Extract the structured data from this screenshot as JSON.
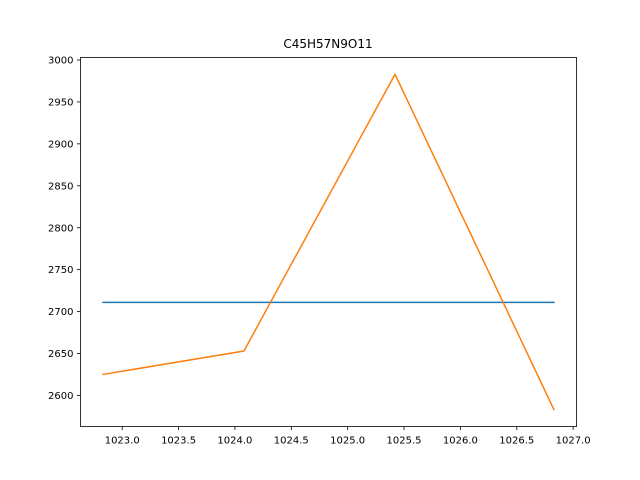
{
  "chart_data": {
    "type": "line",
    "title": "C45H57N9O11",
    "xlabel": "",
    "ylabel": "",
    "xlim": [
      1022.63,
      1027.03
    ],
    "ylim": [
      2562.9,
      3003.0
    ],
    "x_ticks": [
      1023.0,
      1023.5,
      1024.0,
      1024.5,
      1025.0,
      1025.5,
      1026.0,
      1026.5,
      1027.0
    ],
    "x_tick_labels": [
      "1023.0",
      "1023.5",
      "1024.0",
      "1024.5",
      "1025.0",
      "1025.5",
      "1026.0",
      "1026.5",
      "1027.0"
    ],
    "y_ticks": [
      2600,
      2650,
      2700,
      2750,
      2800,
      2850,
      2900,
      2950,
      3000
    ],
    "y_tick_labels": [
      "2600",
      "2650",
      "2700",
      "2750",
      "2800",
      "2850",
      "2900",
      "2950",
      "3000"
    ],
    "grid": false,
    "series": [
      {
        "color": "#1f77b4",
        "x": [
          1022.83,
          1026.83
        ],
        "y": [
          2711,
          2711
        ]
      },
      {
        "color": "#ff7f0e",
        "x": [
          1022.83,
          1024.08,
          1025.42,
          1026.83
        ],
        "y": [
          2625,
          2653,
          2983,
          2583
        ]
      }
    ]
  }
}
